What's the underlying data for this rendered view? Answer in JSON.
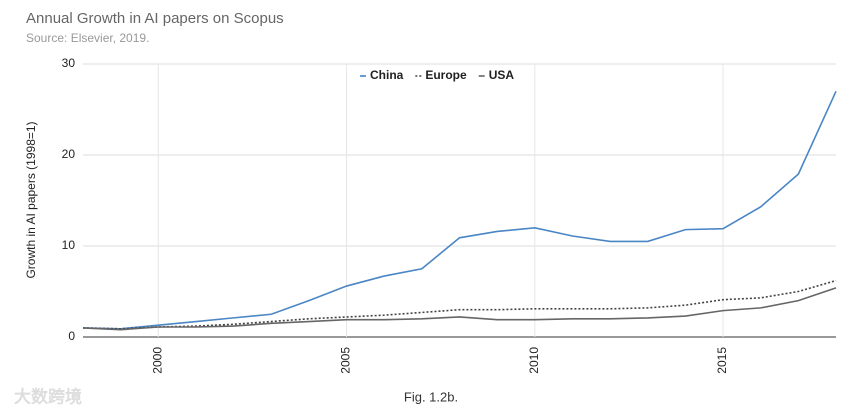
{
  "chart_data": {
    "type": "line",
    "title": "Annual Growth in AI papers on Scopus",
    "subtitle": "Source: Elsevier, 2019.",
    "y_label": "Growth in AI papers (1998=1)",
    "x": [
      1998,
      1999,
      2000,
      2001,
      2002,
      2003,
      2004,
      2005,
      2006,
      2007,
      2008,
      2009,
      2010,
      2011,
      2012,
      2013,
      2014,
      2015,
      2016,
      2017,
      2018
    ],
    "series": [
      {
        "name": "China",
        "color": "#4a86c5",
        "line_style": "solid",
        "values": [
          1.0,
          0.9,
          1.3,
          1.7,
          2.1,
          2.5,
          4.0,
          5.6,
          6.7,
          7.5,
          10.9,
          11.6,
          12.0,
          11.1,
          10.5,
          10.5,
          11.8,
          11.9,
          14.3,
          17.9,
          27.0
        ]
      },
      {
        "name": "Europe",
        "color": "#444444",
        "line_style": "dotted",
        "values": [
          1.0,
          0.9,
          1.1,
          1.2,
          1.4,
          1.7,
          2.0,
          2.2,
          2.4,
          2.7,
          3.0,
          3.0,
          3.1,
          3.1,
          3.1,
          3.2,
          3.5,
          4.1,
          4.3,
          5.0,
          6.2
        ]
      },
      {
        "name": "USA",
        "color": "#666666",
        "line_style": "solid",
        "values": [
          1.0,
          0.8,
          1.1,
          1.1,
          1.2,
          1.5,
          1.7,
          1.9,
          1.9,
          2.0,
          2.2,
          1.9,
          1.9,
          2.0,
          2.0,
          2.1,
          2.3,
          2.9,
          3.2,
          4.0,
          5.4
        ]
      }
    ],
    "xlim": [
      1998,
      2018
    ],
    "xticks": [
      2000,
      2005,
      2010,
      2015
    ],
    "ylim": [
      0,
      30
    ],
    "yticks": [
      0,
      10,
      20,
      30
    ],
    "grid": true,
    "legend": "top"
  },
  "caption": "Fig. 1.2b.",
  "watermark": "大数跨境"
}
